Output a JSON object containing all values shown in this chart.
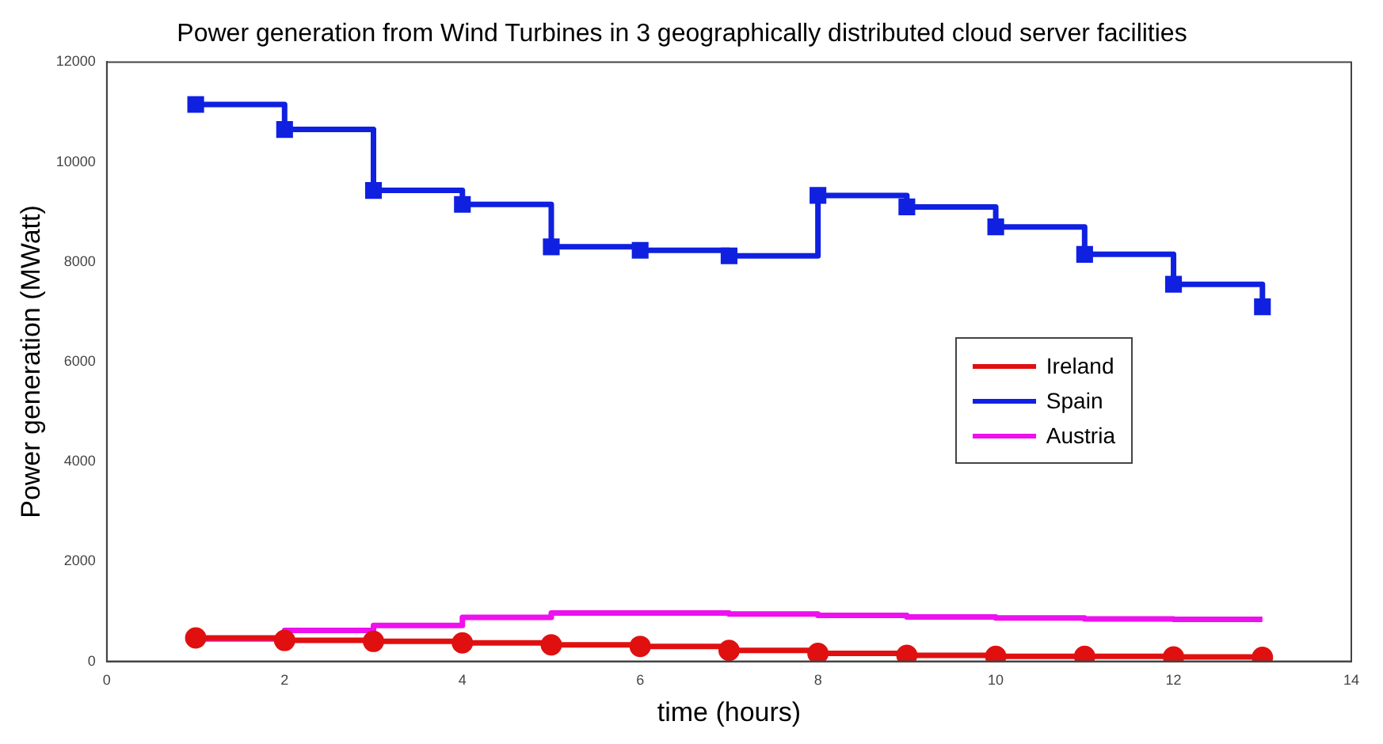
{
  "chart_data": {
    "type": "step",
    "title": "Power generation from Wind Turbines in 3 geographically distributed cloud server facilities",
    "xlabel": "time (hours)",
    "ylabel": "Power generation (MWatt)",
    "x": [
      1,
      2,
      3,
      4,
      5,
      6,
      7,
      8,
      9,
      10,
      11,
      12,
      13
    ],
    "series": [
      {
        "name": "Ireland",
        "color": "#e01010",
        "marker": "circle",
        "values": [
          470,
          420,
          400,
          370,
          330,
          300,
          220,
          160,
          120,
          100,
          100,
          90,
          80
        ]
      },
      {
        "name": "Spain",
        "color": "#1020e0",
        "marker": "square",
        "values": [
          11150,
          10650,
          9430,
          9150,
          8300,
          8230,
          8120,
          9330,
          9100,
          8700,
          8150,
          7550,
          7100
        ]
      },
      {
        "name": "Austria",
        "color": "#ee10ee",
        "marker": "none",
        "values": [
          450,
          620,
          720,
          880,
          970,
          970,
          950,
          920,
          890,
          870,
          850,
          840,
          840
        ]
      }
    ],
    "xlim": [
      0,
      14
    ],
    "xticks": [
      0,
      2,
      4,
      6,
      8,
      10,
      12,
      14
    ],
    "ylim": [
      0,
      12000
    ],
    "yticks": [
      0,
      2000,
      4000,
      6000,
      8000,
      10000,
      12000
    ],
    "grid": false,
    "legend": "right"
  }
}
